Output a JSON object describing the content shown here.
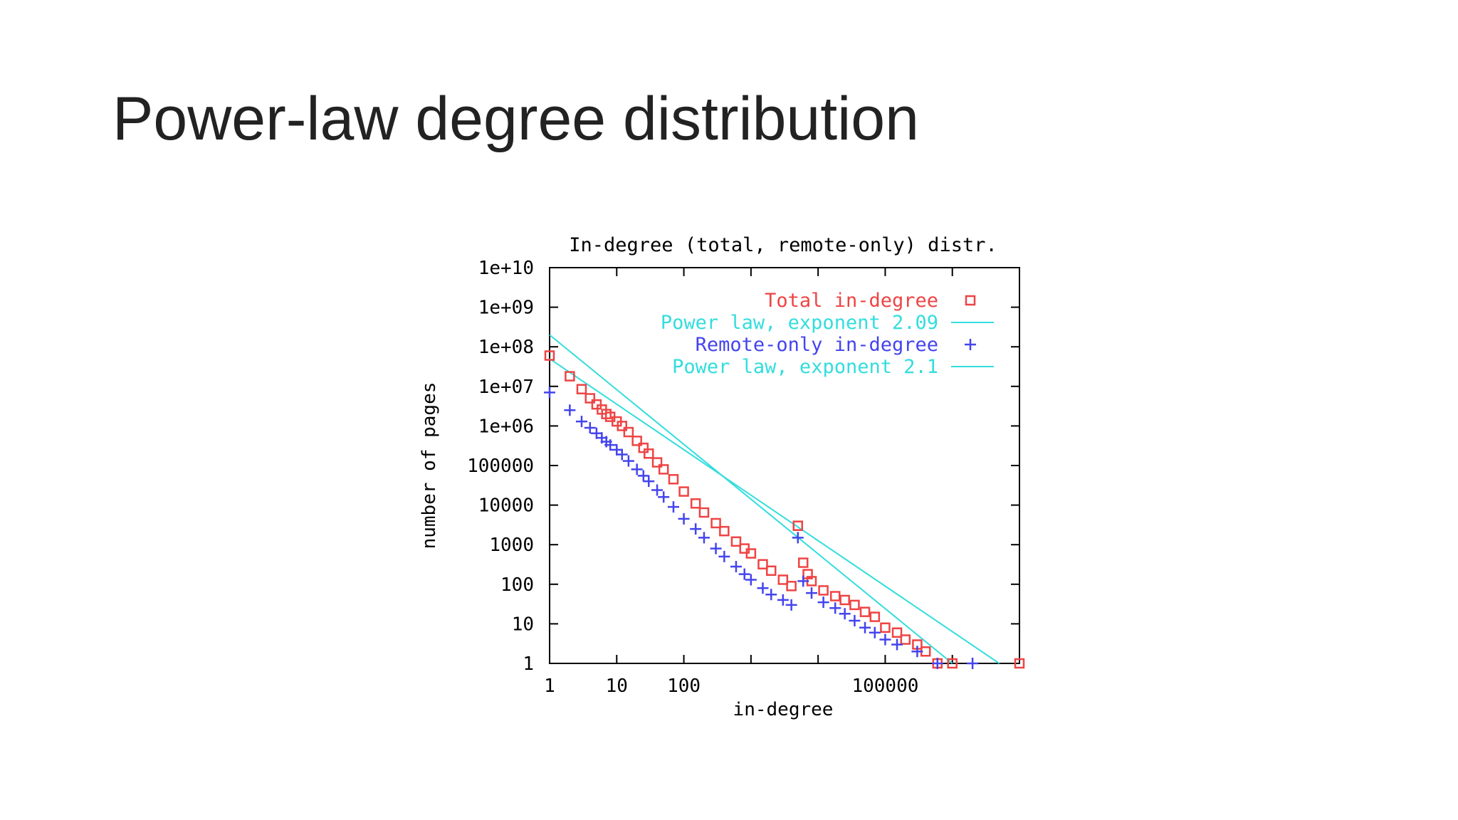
{
  "slide": {
    "title": "Power-law degree distribution"
  },
  "colors": {
    "total": "#ee4444",
    "remote": "#4444ee",
    "powerlaw": "#33dddd",
    "axis": "#000000"
  },
  "chart_data": {
    "type": "scatter",
    "title": "In-degree (total, remote-only) distr.",
    "xlabel": "in-degree",
    "ylabel": "number of pages",
    "x_scale": "log",
    "y_scale": "log",
    "xlim": [
      1,
      10000000
    ],
    "ylim": [
      1,
      10000000000
    ],
    "x_ticks": [
      {
        "value": 1,
        "label": "1"
      },
      {
        "value": 10,
        "label": "10"
      },
      {
        "value": 100,
        "label": "100"
      },
      {
        "value": 100000,
        "label": "100000"
      }
    ],
    "x_minor_ticks": [
      1000,
      10000,
      1000000
    ],
    "y_ticks": [
      {
        "value": 1,
        "label": "1"
      },
      {
        "value": 10,
        "label": "10"
      },
      {
        "value": 100,
        "label": "100"
      },
      {
        "value": 1000,
        "label": "1000"
      },
      {
        "value": 10000,
        "label": "10000"
      },
      {
        "value": 100000,
        "label": "100000"
      },
      {
        "value": 1000000,
        "label": "1e+06"
      },
      {
        "value": 10000000,
        "label": "1e+07"
      },
      {
        "value": 100000000,
        "label": "1e+08"
      },
      {
        "value": 1000000000,
        "label": "1e+09"
      },
      {
        "value": 10000000000,
        "label": "1e+10"
      }
    ],
    "legend_position": "top-right",
    "series": [
      {
        "name": "Total in-degree",
        "kind": "points",
        "marker": "square",
        "color": "#ee4444",
        "points": [
          [
            1,
            60000000
          ],
          [
            2,
            18000000
          ],
          [
            3,
            8500000
          ],
          [
            4,
            5000000
          ],
          [
            5,
            3500000
          ],
          [
            6,
            2600000
          ],
          [
            7,
            2000000
          ],
          [
            8,
            1700000
          ],
          [
            10,
            1300000
          ],
          [
            12,
            1000000
          ],
          [
            15,
            700000
          ],
          [
            20,
            420000
          ],
          [
            25,
            280000
          ],
          [
            30,
            200000
          ],
          [
            40,
            120000
          ],
          [
            50,
            80000
          ],
          [
            70,
            45000
          ],
          [
            100,
            22000
          ],
          [
            150,
            11000
          ],
          [
            200,
            6500
          ],
          [
            300,
            3500
          ],
          [
            400,
            2200
          ],
          [
            600,
            1200
          ],
          [
            800,
            800
          ],
          [
            1000,
            600
          ],
          [
            1500,
            320
          ],
          [
            2000,
            220
          ],
          [
            3000,
            130
          ],
          [
            4000,
            90
          ],
          [
            5000,
            3000
          ],
          [
            6000,
            350
          ],
          [
            7000,
            180
          ],
          [
            8000,
            120
          ],
          [
            12000,
            70
          ],
          [
            18000,
            50
          ],
          [
            25000,
            40
          ],
          [
            35000,
            30
          ],
          [
            50000,
            20
          ],
          [
            70000,
            15
          ],
          [
            100000,
            8
          ],
          [
            150000,
            6
          ],
          [
            200000,
            4
          ],
          [
            300000,
            3
          ],
          [
            400000,
            2
          ],
          [
            600000,
            1
          ],
          [
            1000000,
            1
          ],
          [
            10000000,
            1
          ]
        ]
      },
      {
        "name": "Power law, exponent 2.09",
        "kind": "line",
        "color": "#33dddd",
        "exponent": 2.09,
        "from": [
          1,
          200000000
        ],
        "to": [
          1000000,
          1
        ]
      },
      {
        "name": "Remote-only in-degree",
        "kind": "points",
        "marker": "plus",
        "color": "#4444ee",
        "points": [
          [
            1,
            7000000
          ],
          [
            2,
            2500000
          ],
          [
            3,
            1300000
          ],
          [
            4,
            900000
          ],
          [
            5,
            650000
          ],
          [
            6,
            500000
          ],
          [
            7,
            400000
          ],
          [
            8,
            330000
          ],
          [
            10,
            250000
          ],
          [
            12,
            190000
          ],
          [
            15,
            130000
          ],
          [
            20,
            80000
          ],
          [
            25,
            55000
          ],
          [
            30,
            40000
          ],
          [
            40,
            24000
          ],
          [
            50,
            16000
          ],
          [
            70,
            9000
          ],
          [
            100,
            4500
          ],
          [
            150,
            2500
          ],
          [
            200,
            1500
          ],
          [
            300,
            800
          ],
          [
            400,
            500
          ],
          [
            600,
            280
          ],
          [
            800,
            180
          ],
          [
            1000,
            130
          ],
          [
            1500,
            80
          ],
          [
            2000,
            55
          ],
          [
            3000,
            40
          ],
          [
            4000,
            30
          ],
          [
            5000,
            1500
          ],
          [
            6000,
            120
          ],
          [
            8000,
            60
          ],
          [
            12000,
            35
          ],
          [
            18000,
            25
          ],
          [
            25000,
            18
          ],
          [
            35000,
            12
          ],
          [
            50000,
            8
          ],
          [
            70000,
            6
          ],
          [
            100000,
            4
          ],
          [
            150000,
            3
          ],
          [
            300000,
            2
          ],
          [
            600000,
            1
          ],
          [
            2000000,
            1
          ]
        ]
      },
      {
        "name": "Power law, exponent 2.1",
        "kind": "line",
        "color": "#33dddd",
        "exponent": 2.1,
        "from": [
          1,
          50000000
        ],
        "to": [
          5000000,
          1
        ]
      }
    ]
  }
}
